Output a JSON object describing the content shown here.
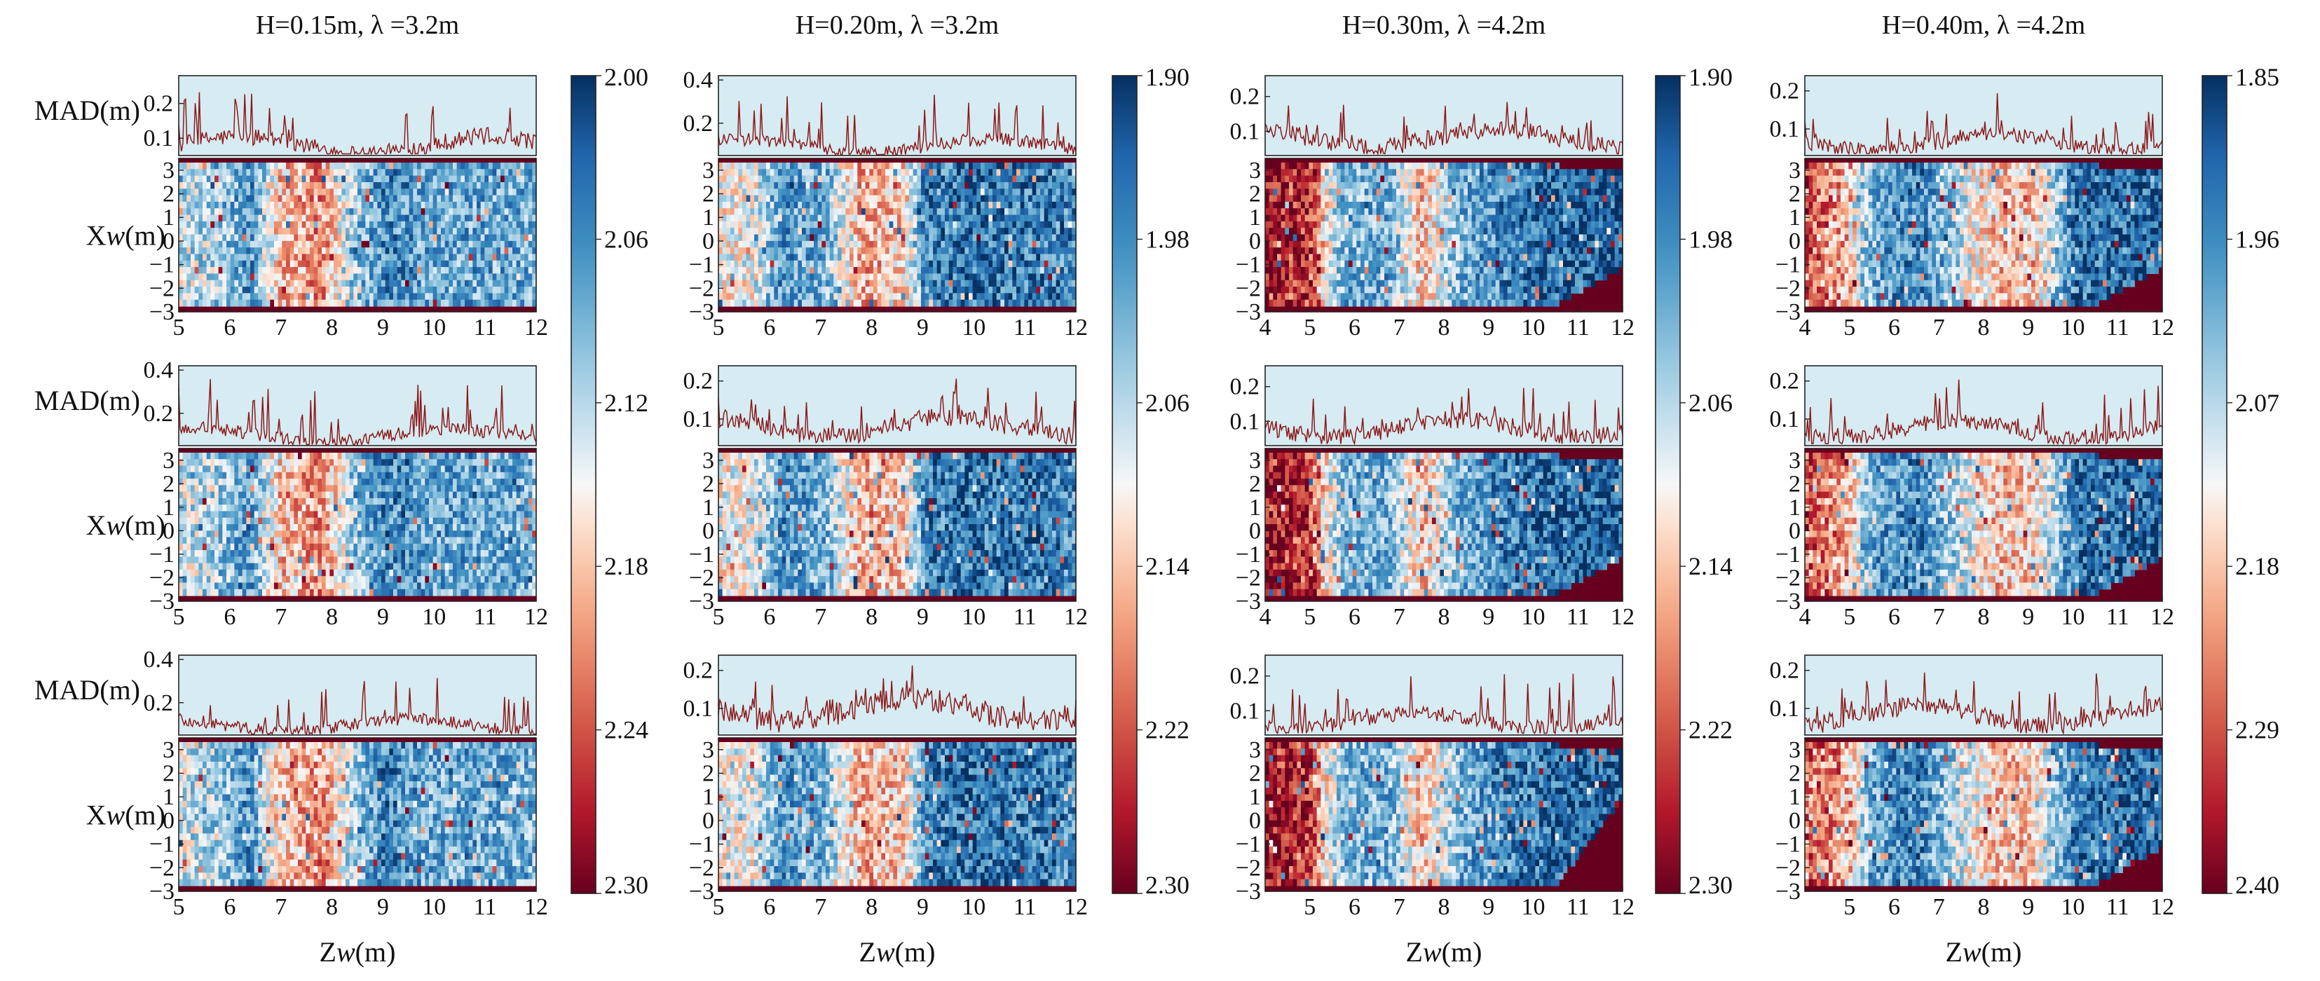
{
  "chart_data": {
    "type": "heatmap",
    "description_layout": "4 columns x 3 rows; each cell: MAD(m) line trace above a Xw-Zw heatmap",
    "xlabel": "Zw(m)",
    "ylabel_heatmap": "Xw(m)",
    "ylabel_trace": "MAD(m)",
    "xlabel_prefix": "Z",
    "xlabel_var": "w",
    "xlabel_unit": "(m)",
    "ylabel_prefix": "X",
    "ylabel_var": "w",
    "ylabel_unit": "(m)",
    "xw_ticks": [
      "3",
      "2",
      "1",
      "0",
      "−1",
      "−2",
      "−3"
    ],
    "xw_range": [
      -3,
      3.5
    ],
    "colors": {
      "low": "#67001f",
      "mid": "#f7f7f7",
      "high": "#053061",
      "trace": "#8b1a1a",
      "trace_bg": "#d6ebf2"
    },
    "columns": [
      {
        "title": "H=0.15m, λ =3.2m",
        "zw_range": [
          5,
          12
        ],
        "zw_ticks": [
          "5",
          "6",
          "7",
          "8",
          "9",
          "10",
          "11",
          "12"
        ],
        "colorbar_ticks": [
          "2.00",
          "2.06",
          "2.12",
          "2.18",
          "2.24",
          "2.30"
        ],
        "colorbar_range": [
          2.0,
          2.3
        ],
        "rows": [
          {
            "mad_ticks": [
              "0.2",
              "0.1"
            ],
            "mad_range": [
              0.05,
              0.28
            ],
            "mad_mean": 0.1,
            "mad_peak": 0.25
          },
          {
            "mad_ticks": [
              "0.4",
              "0.2"
            ],
            "mad_range": [
              0.05,
              0.42
            ],
            "mad_mean": 0.12,
            "mad_peak": 0.36
          },
          {
            "mad_ticks": [
              "0.4",
              "0.2"
            ],
            "mad_range": [
              0.05,
              0.42
            ],
            "mad_mean": 0.12,
            "mad_peak": 0.3
          }
        ]
      },
      {
        "title": "H=0.20m, λ =3.2m",
        "zw_range": [
          5,
          12
        ],
        "zw_ticks": [
          "5",
          "6",
          "7",
          "8",
          "9",
          "10",
          "11",
          "12"
        ],
        "colorbar_ticks": [
          "1.90",
          "1.98",
          "2.06",
          "2.14",
          "2.22",
          "2.30"
        ],
        "colorbar_range": [
          1.9,
          2.3
        ],
        "rows": [
          {
            "mad_ticks": [
              "0.4",
              "0.2"
            ],
            "mad_range": [
              0.05,
              0.42
            ],
            "mad_mean": 0.12,
            "mad_peak": 0.33
          },
          {
            "mad_ticks": [
              "0.2",
              "0.1"
            ],
            "mad_range": [
              0.03,
              0.24
            ],
            "mad_mean": 0.1,
            "mad_peak": 0.2
          },
          {
            "mad_ticks": [
              "0.2",
              "0.1"
            ],
            "mad_range": [
              0.03,
              0.24
            ],
            "mad_mean": 0.12,
            "mad_peak": 0.2
          }
        ]
      },
      {
        "title": "H=0.30m, λ =4.2m",
        "zw_range": [
          4,
          12
        ],
        "zw_ticks": [
          "4",
          "5",
          "6",
          "7",
          "8",
          "9",
          "10",
          "11",
          "12"
        ],
        "zw_ticks_row3": [
          "5",
          "6",
          "7",
          "8",
          "9",
          "10",
          "11",
          "12"
        ],
        "colorbar_ticks": [
          "1.90",
          "1.98",
          "2.06",
          "2.14",
          "2.22",
          "2.30"
        ],
        "colorbar_range": [
          1.9,
          2.3
        ],
        "rows": [
          {
            "mad_ticks": [
              "0.2",
              "0.1"
            ],
            "mad_range": [
              0.03,
              0.26
            ],
            "mad_mean": 0.1,
            "mad_peak": 0.22
          },
          {
            "mad_ticks": [
              "0.2",
              "0.1"
            ],
            "mad_range": [
              0.03,
              0.26
            ],
            "mad_mean": 0.1,
            "mad_peak": 0.22
          },
          {
            "mad_ticks": [
              "0.2",
              "0.1"
            ],
            "mad_range": [
              0.03,
              0.26
            ],
            "mad_mean": 0.09,
            "mad_peak": 0.22
          }
        ]
      },
      {
        "title": "H=0.40m, λ =4.2m",
        "zw_range": [
          4,
          12
        ],
        "zw_ticks": [
          "4",
          "5",
          "6",
          "7",
          "8",
          "9",
          "10",
          "11",
          "12"
        ],
        "zw_ticks_row3": [
          "5",
          "6",
          "7",
          "8",
          "9",
          "10",
          "11",
          "12"
        ],
        "colorbar_ticks": [
          "1.85",
          "1.96",
          "2.07",
          "2.18",
          "2.29",
          "2.40"
        ],
        "colorbar_range": [
          1.85,
          2.4
        ],
        "rows": [
          {
            "mad_ticks": [
              "0.2",
              "0.1"
            ],
            "mad_range": [
              0.03,
              0.24
            ],
            "mad_mean": 0.08,
            "mad_peak": 0.18
          },
          {
            "mad_ticks": [
              "0.2",
              "0.1"
            ],
            "mad_range": [
              0.03,
              0.24
            ],
            "mad_mean": 0.09,
            "mad_peak": 0.19
          },
          {
            "mad_ticks": [
              "0.2",
              "0.1"
            ],
            "mad_range": [
              0.03,
              0.24
            ],
            "mad_mean": 0.1,
            "mad_peak": 0.2
          }
        ]
      }
    ]
  }
}
